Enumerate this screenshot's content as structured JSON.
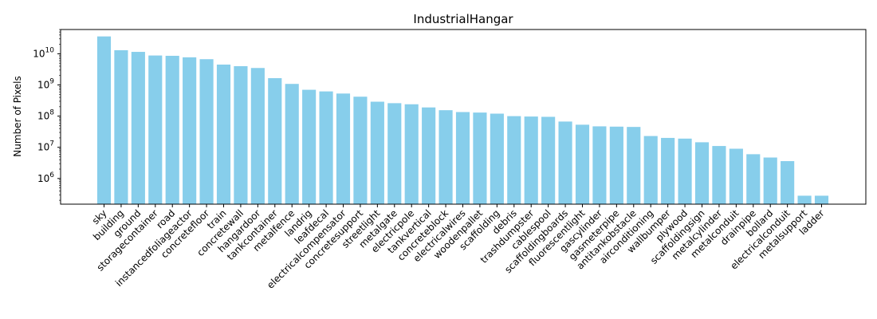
{
  "chart_data": {
    "type": "bar",
    "title": "IndustrialHangar",
    "xlabel": "",
    "ylabel": "Number of Pixels",
    "yscale": "log",
    "ylim": [
      150000,
      60000000000
    ],
    "yticks": [
      {
        "value": 1000000,
        "base": "10",
        "exp": "6"
      },
      {
        "value": 10000000,
        "base": "10",
        "exp": "7"
      },
      {
        "value": 100000000,
        "base": "10",
        "exp": "8"
      },
      {
        "value": 1000000000,
        "base": "10",
        "exp": "9"
      },
      {
        "value": 10000000000,
        "base": "10",
        "exp": "10"
      }
    ],
    "bar_color": "#87ceeb",
    "grid": false,
    "categories": [
      "sky",
      "building",
      "ground",
      "storagecontainer",
      "road",
      "instancedfoliageactor",
      "concretefloor",
      "train",
      "concretewall",
      "hangardoor",
      "tankcontainer",
      "metalfence",
      "landrig",
      "leafdecal",
      "electricalcompensator",
      "concretesupport",
      "streetlight",
      "metalgate",
      "electricpole",
      "tankvertical",
      "concreteblock",
      "electricalwires",
      "woodenpallet",
      "scaffolding",
      "debris",
      "trashdumpster",
      "cablespool",
      "scaffoldingboards",
      "fluorescentlight",
      "gascylinder",
      "gasmeterpipe",
      "antitankobstacle",
      "airconditioning",
      "wallbumper",
      "plywood",
      "scaffoldingsign",
      "metalcylinder",
      "metalconduit",
      "drainpipe",
      "bollard",
      "electricalconduit",
      "metalsupport",
      "ladder"
    ],
    "values": [
      36000000000,
      13000000000,
      11500000000,
      8800000000,
      8600000000,
      7700000000,
      6700000000,
      4500000000,
      4000000000,
      3500000000,
      1650000000,
      1080000000,
      700000000,
      620000000,
      530000000,
      420000000,
      290000000,
      260000000,
      240000000,
      190000000,
      155000000,
      135000000,
      130000000,
      120000000,
      100000000,
      97000000,
      95000000,
      67000000,
      53000000,
      47000000,
      46000000,
      45000000,
      23000000,
      20000000,
      19000000,
      14500000,
      11000000,
      9000000,
      6000000,
      4700000,
      3600000,
      280000,
      280000
    ]
  }
}
